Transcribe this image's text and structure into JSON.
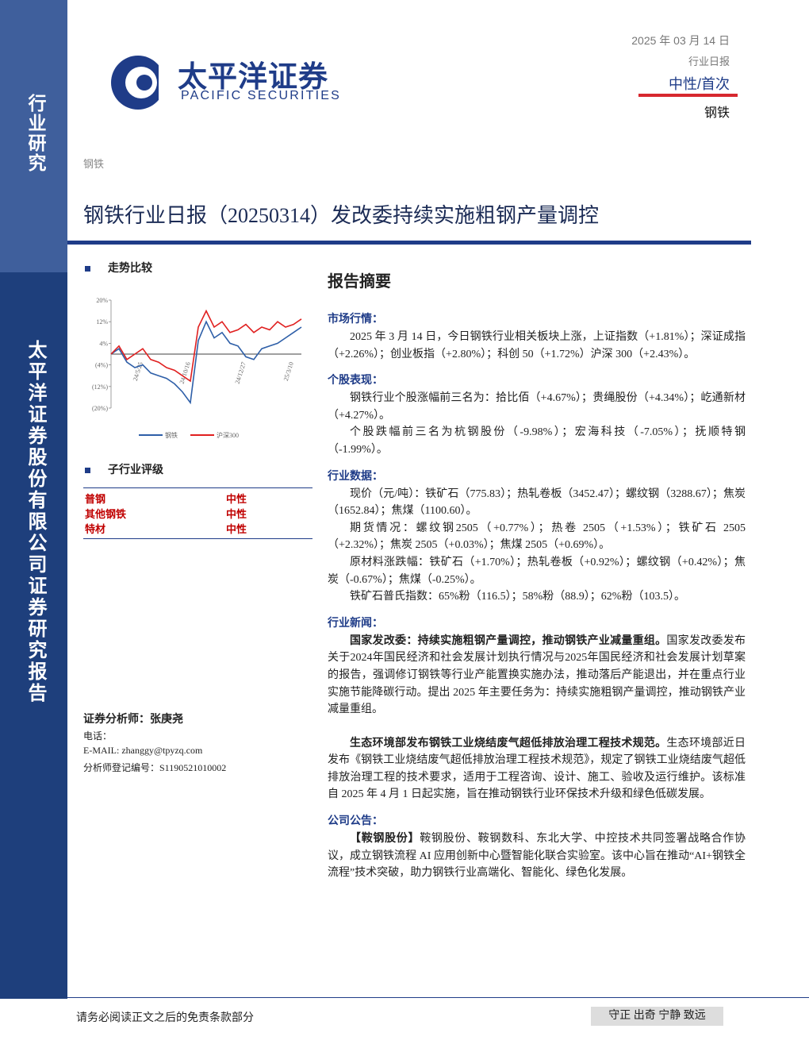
{
  "header": {
    "logo_cn": "太平洋证券",
    "logo_en": "PACIFIC SECURITIES",
    "date": "2025 年 03 月 14 日",
    "report_type": "行业日报",
    "rating": "中性/首次",
    "industry": "钢铁"
  },
  "sidebar": {
    "category": "行业研究",
    "company": "太平洋证券股份有限公司证券研究报告"
  },
  "breadcrumb": "钢铁",
  "title": "钢铁行业日报（20250314）发改委持续实施粗钢产量调控",
  "trend_heading": "走势比较",
  "chart_data": {
    "type": "line",
    "categories": [
      null,
      null,
      null,
      null,
      "24/5/25",
      null,
      null,
      null,
      null,
      null,
      "24/10/16",
      null,
      null,
      null,
      null,
      null,
      null,
      "24/12/27",
      null,
      null,
      null,
      null,
      null,
      "25/3/10",
      null
    ],
    "series": [
      {
        "name": "钢铁",
        "color": "#2e5fa8",
        "values": [
          0,
          2,
          -3,
          -5,
          -4,
          -7,
          -8,
          -9,
          -11,
          -14,
          -18,
          5,
          12,
          6,
          8,
          4,
          3,
          -1,
          -2,
          2,
          3,
          4,
          6,
          8,
          10
        ]
      },
      {
        "name": "沪深300",
        "color": "#e02020",
        "values": [
          0,
          3,
          -2,
          0,
          2,
          -2,
          -3,
          -5,
          -6,
          -8,
          -10,
          10,
          16,
          10,
          12,
          8,
          9,
          11,
          8,
          10,
          9,
          12,
          10,
          11,
          13
        ]
      }
    ],
    "ylim": [
      -20,
      20
    ],
    "yticks": [
      {
        "value": -20,
        "label": "(20%)"
      },
      {
        "value": -12,
        "label": "(12%)"
      },
      {
        "value": -4,
        "label": "(4%)"
      },
      {
        "value": 4,
        "label": "4%"
      },
      {
        "value": 12,
        "label": "12%"
      },
      {
        "value": 20,
        "label": "20%"
      }
    ]
  },
  "sub_rating": {
    "heading": "子行业评级",
    "rows": [
      [
        "普钢",
        "中性"
      ],
      [
        "其他钢铁",
        "中性"
      ],
      [
        "特材",
        "中性"
      ]
    ]
  },
  "analyst": {
    "name": "证券分析师：张庚尧",
    "phone": "电话：",
    "email": "E-MAIL: zhanggy@tpyzq.com",
    "registration": "分析师登记编号：S1190521010002"
  },
  "summary": {
    "heading": "报告摘要",
    "sections": [
      {
        "title": "市场行情：",
        "paragraphs": [
          {
            "text": "2025 年 3 月 14 日，今日钢铁行业相关板块上涨，上证指数（+1.81%）；深证成指（+2.26%）；创业板指（+2.80%）；科创 50（+1.72%）沪深 300（+2.43%）。"
          }
        ]
      },
      {
        "title": "个股表现：",
        "paragraphs": [
          {
            "text": "钢铁行业个股涨幅前三名为：拾比佰（+4.67%）；贵绳股份（+4.34%）；屹通新材（+4.27%）。"
          },
          {
            "text": "个股跌幅前三名为杭钢股份（-9.98%）；宏海科技（-7.05%）；抚顺特钢（-1.99%）。"
          }
        ]
      },
      {
        "title": "行业数据：",
        "paragraphs": [
          {
            "text": "现价（元/吨）：铁矿石（775.83）；热轧卷板（3452.47）；螺纹钢（3288.67）；焦炭（1652.84）；焦煤（1100.60）。"
          },
          {
            "text": "期货情况：螺纹钢2505（+0.77%）；热卷 2505（+1.53%）；铁矿石 2505（+2.32%）；焦炭 2505（+0.03%）；焦煤 2505（+0.69%）。"
          },
          {
            "text": "原材料涨跌幅：铁矿石（+1.70%）；热轧卷板（+0.92%）；螺纹钢（+0.42%）；焦炭（-0.67%）；焦煤（-0.25%）。"
          },
          {
            "text": "铁矿石普氏指数：65%粉（116.5）；58%粉（88.9）；62%粉（103.5）。"
          }
        ]
      },
      {
        "title": "行业新闻：",
        "paragraphs": [
          {
            "bold": "国家发改委：持续实施粗钢产量调控，推动钢铁产业减量重组。",
            "text": "国家发改委发布关于2024年国民经济和社会发展计划执行情况与2025年国民经济和社会发展计划草案的报告，强调修订钢铁等行业产能置换实施办法，推动落后产能退出，并在重点行业实施节能降碳行动。提出 2025 年主要任务为：持续实施粗钢产量调控，推动钢铁产业减量重组。"
          },
          {
            "bold": "生态环境部发布钢铁工业烧结废气超低排放治理工程技术规范。",
            "text": "生态环境部近日发布《钢铁工业烧结废气超低排放治理工程技术规范》，规定了钢铁工业烧结废气超低排放治理工程的技术要求，适用于工程咨询、设计、施工、验收及运行维护。该标准自 2025 年 4 月 1 日起实施，旨在推动钢铁行业环保技术升级和绿色低碳发展。"
          }
        ]
      },
      {
        "title": "公司公告：",
        "paragraphs": [
          {
            "bold": "【鞍钢股份】",
            "text": "鞍钢股份、鞍钢数科、东北大学、中控技术共同签署战略合作协议，成立钢铁流程 AI 应用创新中心暨智能化联合实验室。该中心旨在推动“AI+钢铁全流程”技术突破，助力钢铁行业高端化、智能化、绿色化发展。"
          }
        ]
      }
    ]
  },
  "footer": {
    "disclaimer": "请务必阅读正文之后的免责条款部分",
    "motto": "守正 出奇 宁静 致远"
  }
}
